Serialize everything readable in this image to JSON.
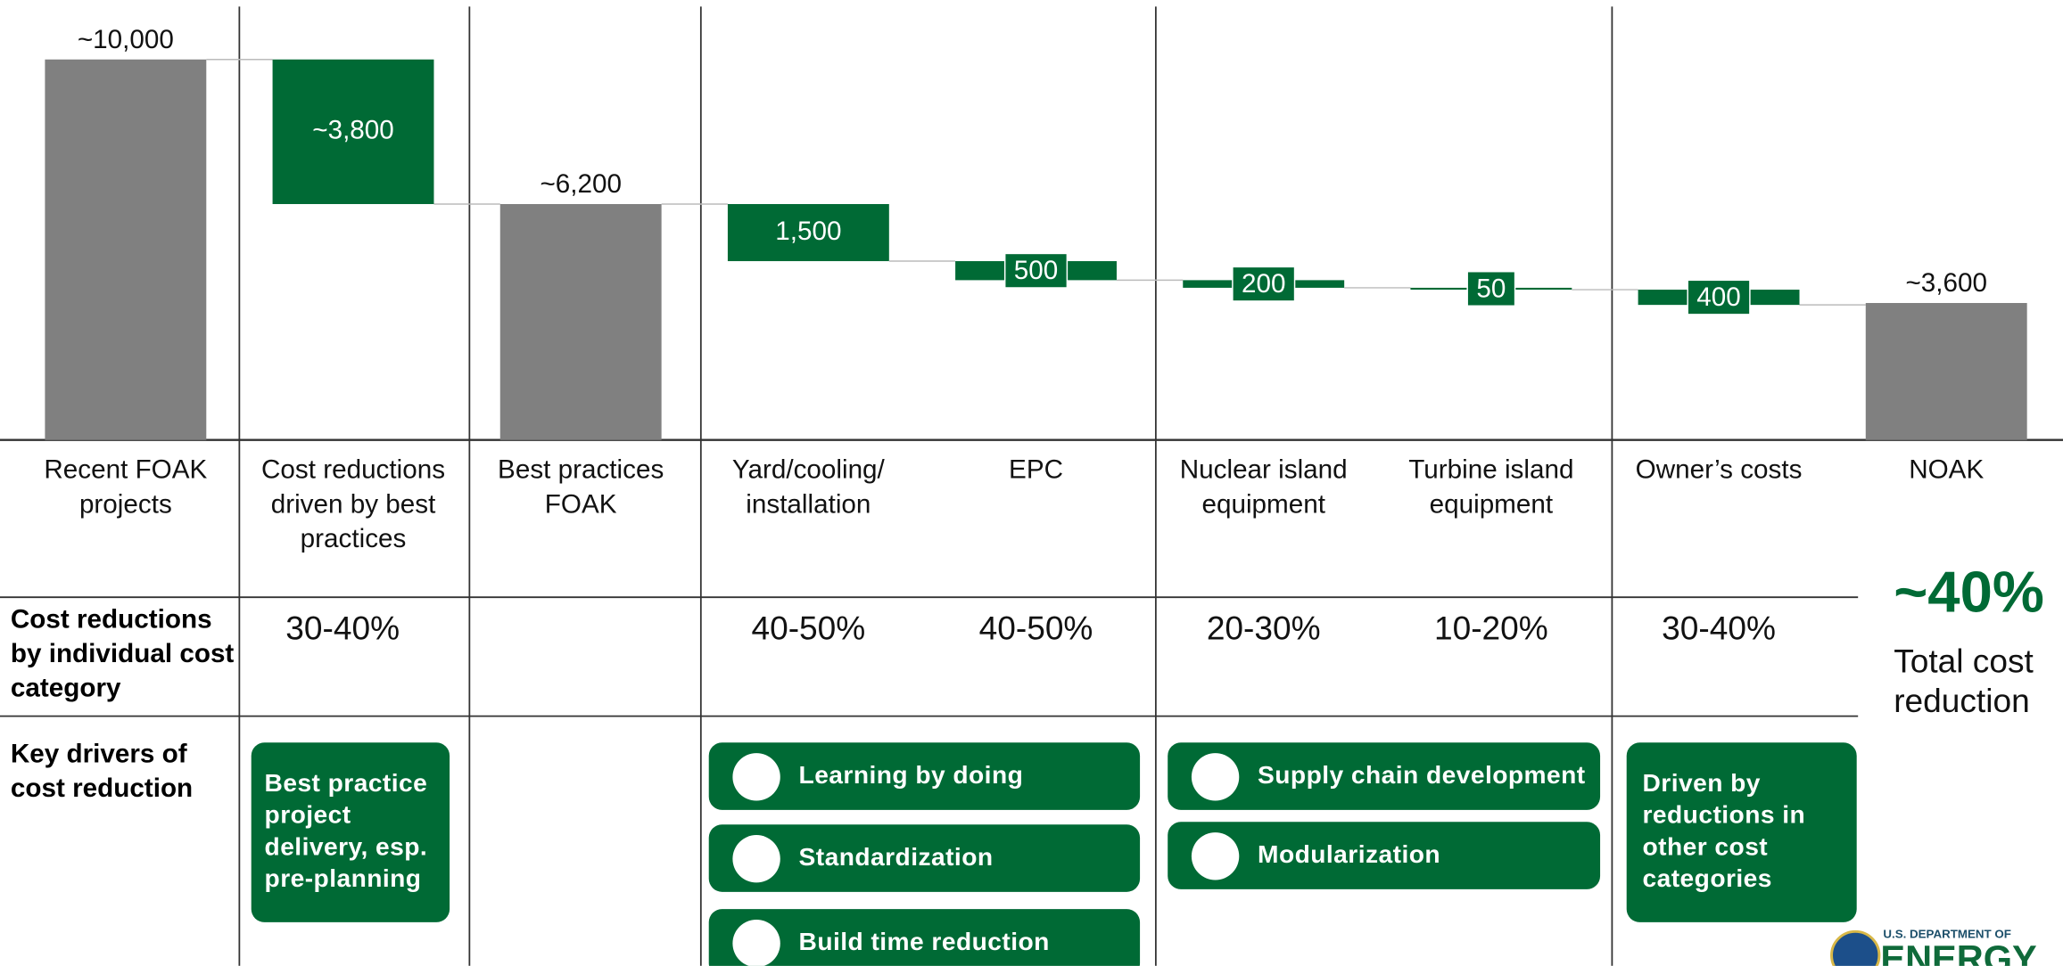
{
  "chart_data": {
    "type": "waterfall",
    "categories": [
      "Recent FOAK projects",
      "Cost reductions driven by best practices",
      "Best practices FOAK",
      "Yard/cooling/ installation",
      "EPC",
      "Nuclear island equipment",
      "Turbine island equipment",
      "Owner’s costs",
      "NOAK"
    ],
    "measure": [
      "absolute",
      "relative",
      "absolute",
      "relative",
      "relative",
      "relative",
      "relative",
      "relative",
      "absolute"
    ],
    "values": [
      10000,
      -3800,
      6200,
      -1500,
      -500,
      -200,
      -50,
      -400,
      3600
    ],
    "value_labels": [
      "~10,000",
      "~3,800",
      "~6,200",
      "1,500",
      "500",
      "200",
      "50",
      "400",
      "~3,600"
    ],
    "ylim": [
      0,
      10000
    ],
    "colors": {
      "absolute": "#808080",
      "relative": "#006a35"
    }
  },
  "table": {
    "reduction_label": "Cost reductions by individual cost category",
    "reduction_ranges": [
      null,
      "30-40%",
      null,
      "40-50%",
      "40-50%",
      "20-30%",
      "10-20%",
      "30-40%",
      null
    ],
    "total_reduction": "~40%",
    "total_reduction_label": "Total cost reduction",
    "drivers_label": "Key drivers of cost reduction",
    "driver_groups": [
      [
        "Best practice project delivery, esp. pre-planning"
      ],
      [
        "Learning by doing",
        "Standardization",
        "Build time reduction"
      ],
      [
        "Supply chain development",
        "Modularization"
      ],
      [
        "Driven by reductions in other cost categories"
      ]
    ]
  },
  "logo": {
    "line1": "U.S. DEPARTMENT OF",
    "line2": "ENERGY"
  }
}
